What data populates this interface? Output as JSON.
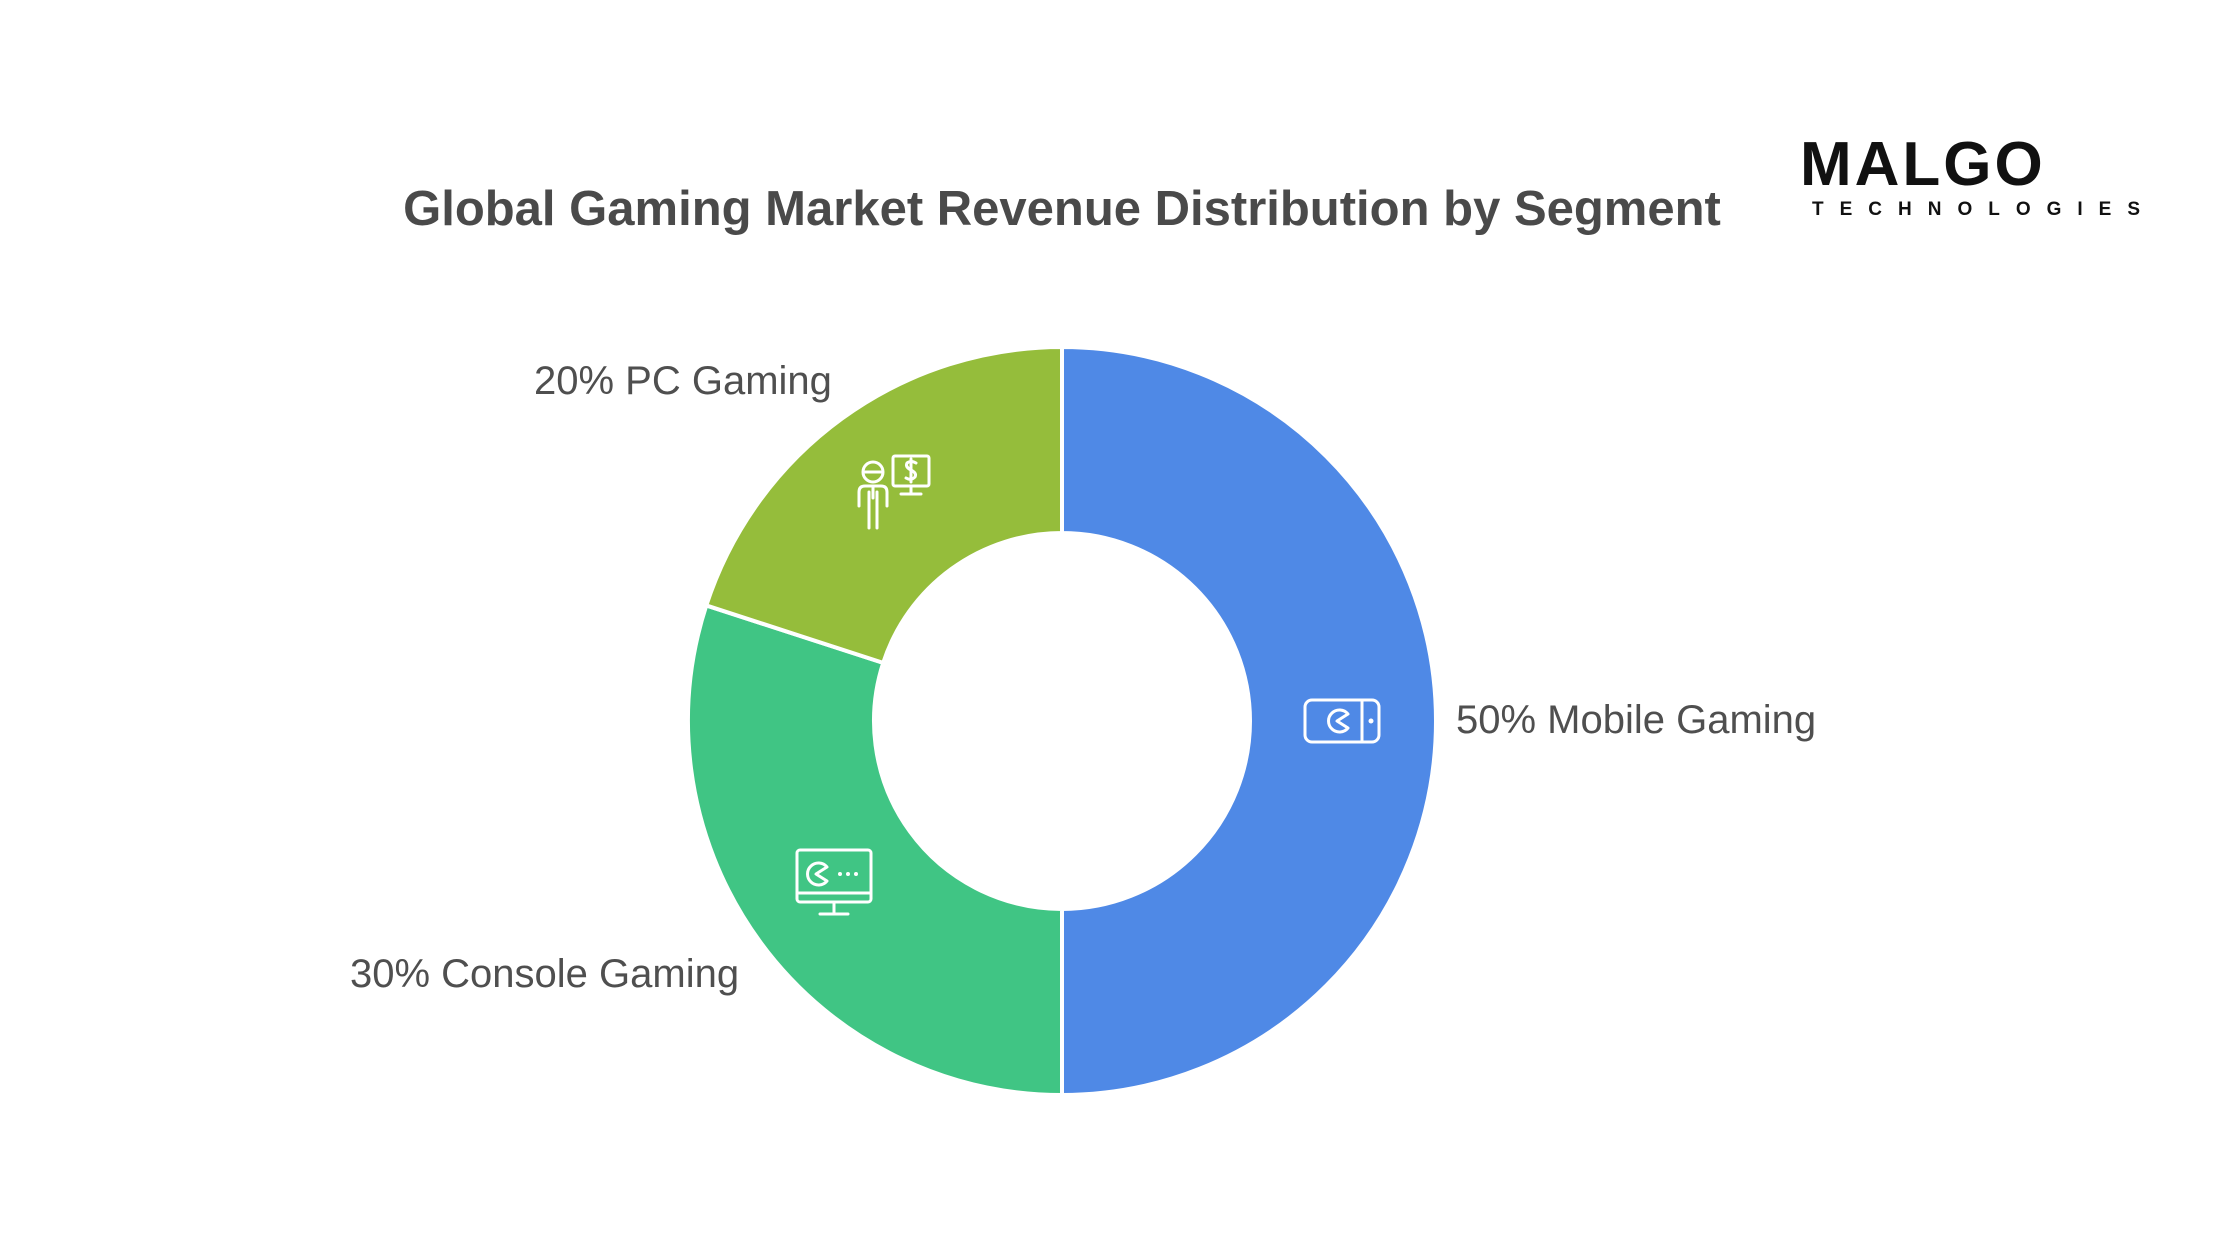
{
  "chart_data": {
    "type": "pie",
    "variant": "donut",
    "title": "Global Gaming Market Revenue Distribution by Segment",
    "slices": [
      {
        "label": "50% Mobile Gaming",
        "name": "Mobile Gaming",
        "value": 50,
        "color": "#4f89e6",
        "icon": "smartphone-game-icon"
      },
      {
        "label": "30% Console Gaming",
        "name": "Console Gaming",
        "value": 30,
        "color": "#40c584",
        "icon": "monitor-game-icon"
      },
      {
        "label": "20% PC Gaming",
        "name": "PC Gaming",
        "value": 20,
        "color": "#95bd3b",
        "icon": "person-screen-dollar-icon"
      }
    ],
    "legend": "none"
  },
  "brand": {
    "name": "MALGO",
    "tagline": "TECHNOLOGIES",
    "accent_color": "#2aa39a"
  }
}
